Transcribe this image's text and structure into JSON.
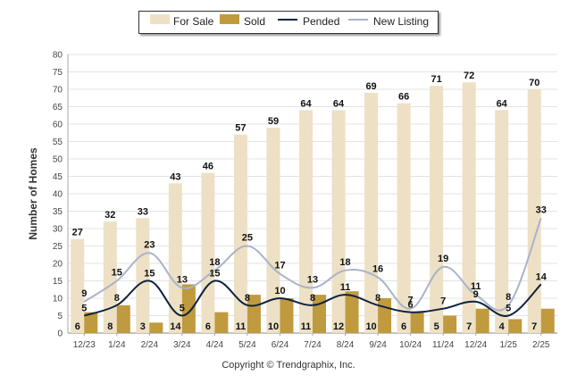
{
  "chart_data": {
    "type": "bar",
    "ylabel": "Number of Homes",
    "ylim": [
      0,
      80
    ],
    "yticks": [
      0,
      5,
      10,
      15,
      20,
      25,
      30,
      35,
      40,
      45,
      50,
      55,
      60,
      65,
      70,
      75,
      80
    ],
    "grid": true,
    "legend_position": "top-center",
    "categories": [
      "12/23",
      "1/24",
      "2/24",
      "3/24",
      "4/24",
      "5/24",
      "6/24",
      "7/24",
      "8/24",
      "9/24",
      "10/24",
      "11/24",
      "12/24",
      "1/25",
      "2/25"
    ],
    "series": [
      {
        "name": "For Sale",
        "type": "bar",
        "color": "#ede0c4",
        "values": [
          27,
          32,
          33,
          43,
          46,
          57,
          59,
          64,
          64,
          69,
          66,
          71,
          72,
          64,
          70
        ]
      },
      {
        "name": "Sold",
        "type": "bar",
        "color": "#c09a3e",
        "values": [
          6,
          8,
          3,
          14,
          6,
          11,
          10,
          11,
          12,
          10,
          6,
          5,
          7,
          4,
          7
        ]
      },
      {
        "name": "Pended",
        "type": "line",
        "color": "#0d2340",
        "values": [
          5,
          8,
          15,
          5,
          15,
          8,
          10,
          8,
          11,
          8,
          6,
          7,
          9,
          5,
          14
        ]
      },
      {
        "name": "New Listing",
        "type": "line",
        "color": "#a9b3c9",
        "values": [
          9,
          15,
          23,
          13,
          18,
          25,
          17,
          13,
          18,
          16,
          7,
          19,
          11,
          8,
          33
        ]
      }
    ]
  },
  "copyright": "Copyright © Trendgraphix, Inc."
}
